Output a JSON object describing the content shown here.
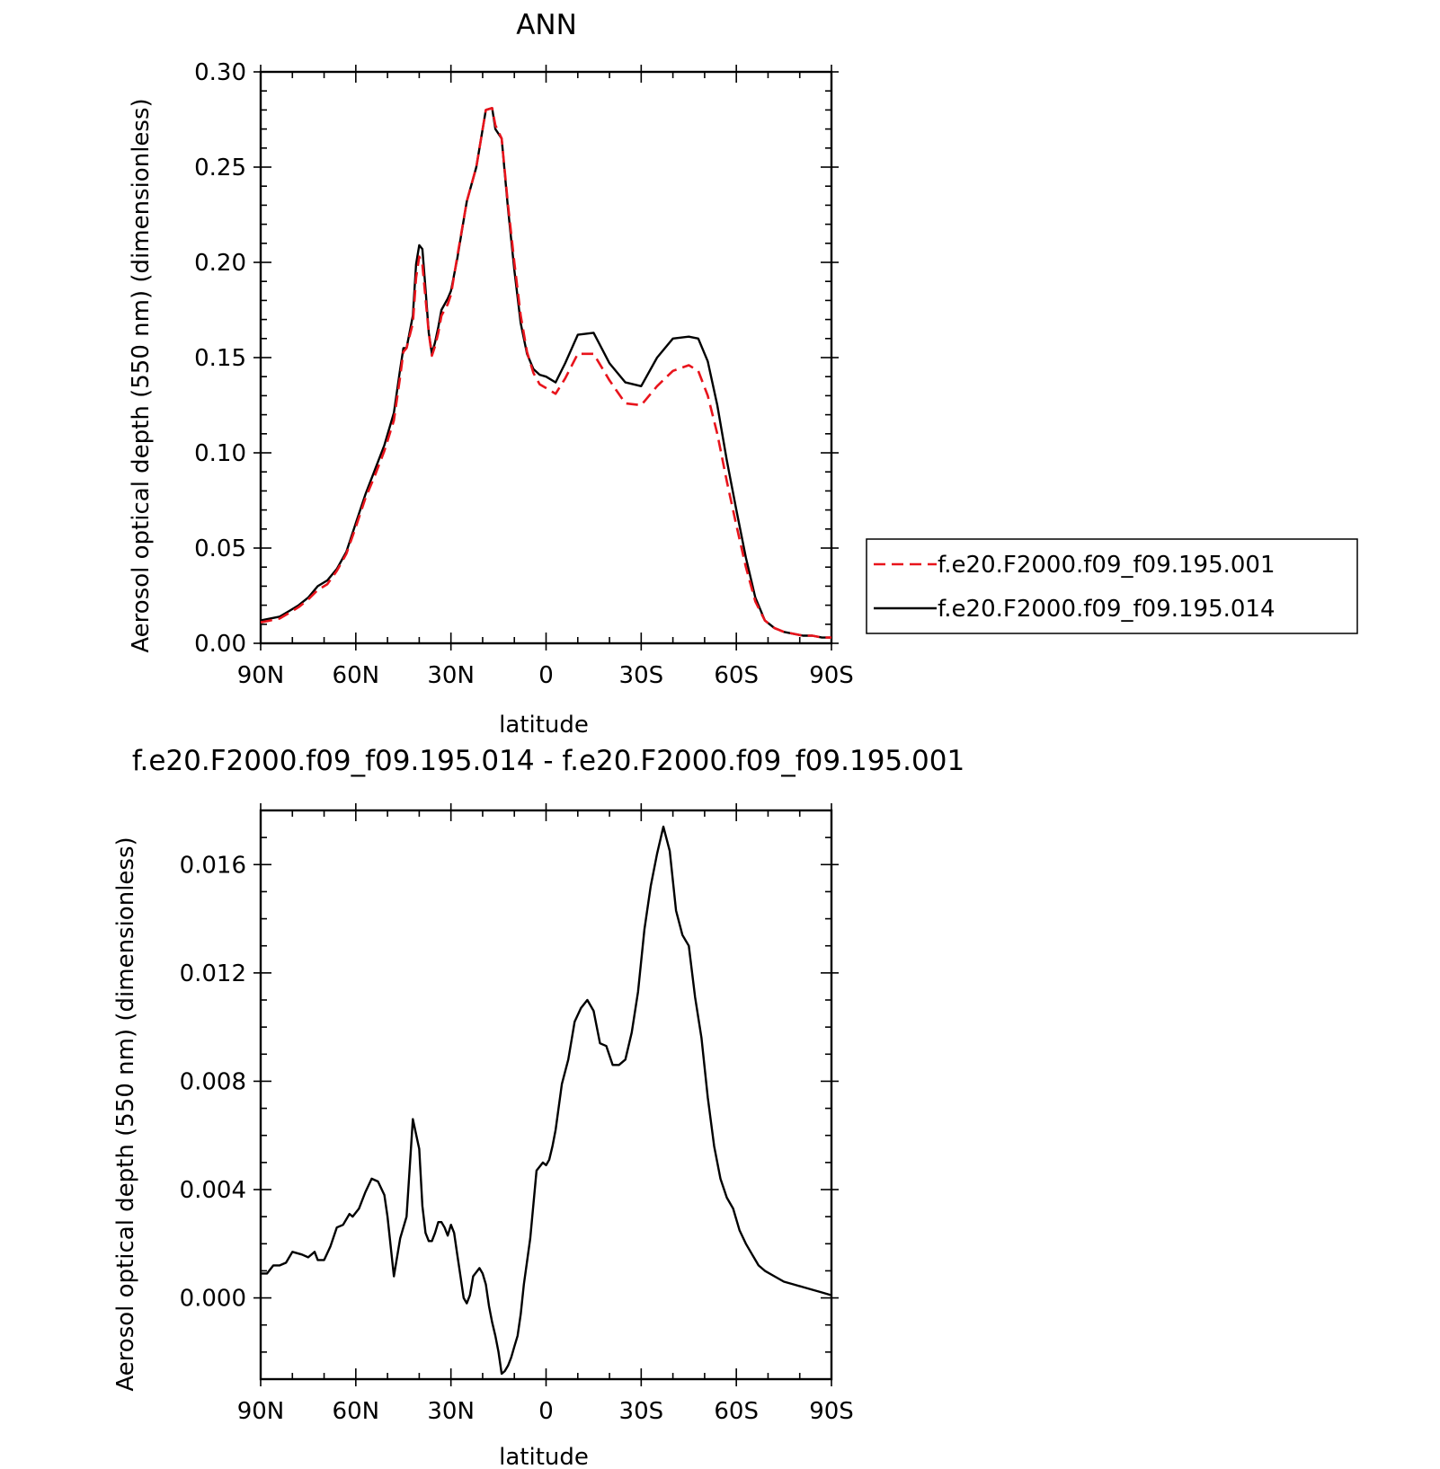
{
  "chart_data": [
    {
      "type": "line",
      "title": "ANN",
      "xlabel": "latitude",
      "ylabel": "Aerosol optical depth (550 nm) (dimensionless)",
      "xlim": [
        90,
        -90
      ],
      "ylim": [
        0,
        0.3
      ],
      "x_ticks": [
        {
          "value": 90,
          "label": "90N"
        },
        {
          "value": 60,
          "label": "60N"
        },
        {
          "value": 30,
          "label": "30N"
        },
        {
          "value": 0,
          "label": "0"
        },
        {
          "value": -30,
          "label": "30S"
        },
        {
          "value": -60,
          "label": "60S"
        },
        {
          "value": -90,
          "label": "90S"
        }
      ],
      "y_ticks": [
        {
          "value": 0.0,
          "label": "0.00"
        },
        {
          "value": 0.05,
          "label": "0.05"
        },
        {
          "value": 0.1,
          "label": "0.10"
        },
        {
          "value": 0.15,
          "label": "0.15"
        },
        {
          "value": 0.2,
          "label": "0.20"
        },
        {
          "value": 0.25,
          "label": "0.25"
        },
        {
          "value": 0.3,
          "label": "0.30"
        }
      ],
      "legend_position": "right",
      "series": [
        {
          "name": "f.e20.F2000.f09_f09.195.001",
          "color": "#e8141c",
          "style": "dashed",
          "x": [
            90,
            87,
            84,
            81,
            78,
            75,
            72,
            69,
            66,
            63,
            60,
            57,
            54,
            51,
            48,
            46,
            45,
            44,
            42,
            41,
            40,
            39,
            38,
            37,
            36,
            35,
            34,
            33,
            31,
            30,
            28,
            25,
            22,
            19,
            17,
            16,
            14,
            12,
            10,
            8,
            6,
            4,
            2,
            0,
            -3,
            -6,
            -10,
            -15,
            -20,
            -25,
            -30,
            -35,
            -40,
            -45,
            -48,
            -51,
            -54,
            -57,
            -60,
            -63,
            -66,
            -69,
            -72,
            -75,
            -78,
            -81,
            -84,
            -87,
            -90
          ],
          "y": [
            0.011,
            0.012,
            0.013,
            0.016,
            0.019,
            0.023,
            0.028,
            0.031,
            0.038,
            0.047,
            0.061,
            0.076,
            0.088,
            0.101,
            0.117,
            0.14,
            0.153,
            0.155,
            0.168,
            0.192,
            0.203,
            0.199,
            0.181,
            0.163,
            0.151,
            0.156,
            0.163,
            0.172,
            0.178,
            0.183,
            0.203,
            0.232,
            0.25,
            0.28,
            0.281,
            0.272,
            0.265,
            0.23,
            0.2,
            0.172,
            0.153,
            0.142,
            0.136,
            0.134,
            0.131,
            0.139,
            0.152,
            0.152,
            0.138,
            0.126,
            0.125,
            0.135,
            0.143,
            0.146,
            0.143,
            0.13,
            0.11,
            0.085,
            0.062,
            0.04,
            0.022,
            0.012,
            0.008,
            0.006,
            0.005,
            0.004,
            0.004,
            0.003,
            0.003
          ]
        },
        {
          "name": "f.e20.F2000.f09_f09.195.014",
          "color": "#000000",
          "style": "solid",
          "x": [
            90,
            87,
            84,
            81,
            78,
            75,
            72,
            69,
            66,
            63,
            60,
            57,
            54,
            51,
            48,
            46,
            45,
            44,
            42,
            41,
            40,
            39,
            38,
            37,
            36,
            35,
            34,
            33,
            31,
            30,
            28,
            25,
            22,
            19,
            17,
            16,
            14,
            12,
            10,
            8,
            6,
            4,
            2,
            0,
            -3,
            -6,
            -10,
            -15,
            -20,
            -25,
            -30,
            -35,
            -40,
            -45,
            -48,
            -51,
            -54,
            -57,
            -60,
            -63,
            -66,
            -69,
            -72,
            -75,
            -78,
            -81,
            -84,
            -87,
            -90
          ],
          "y": [
            0.012,
            0.013,
            0.014,
            0.017,
            0.02,
            0.024,
            0.03,
            0.033,
            0.039,
            0.048,
            0.063,
            0.078,
            0.091,
            0.104,
            0.121,
            0.144,
            0.155,
            0.155,
            0.172,
            0.199,
            0.209,
            0.207,
            0.186,
            0.163,
            0.152,
            0.158,
            0.166,
            0.175,
            0.181,
            0.185,
            0.202,
            0.232,
            0.25,
            0.28,
            0.281,
            0.27,
            0.265,
            0.228,
            0.196,
            0.168,
            0.152,
            0.144,
            0.141,
            0.14,
            0.137,
            0.147,
            0.162,
            0.163,
            0.147,
            0.137,
            0.135,
            0.15,
            0.16,
            0.161,
            0.16,
            0.148,
            0.125,
            0.096,
            0.07,
            0.045,
            0.024,
            0.012,
            0.008,
            0.006,
            0.005,
            0.004,
            0.004,
            0.003,
            0.003
          ]
        }
      ]
    },
    {
      "type": "line",
      "title": "f.e20.F2000.f09_f09.195.014 - f.e20.F2000.f09_f09.195.001",
      "xlabel": "latitude",
      "ylabel": "Aerosol optical depth (550 nm) (dimensionless)",
      "xlim": [
        90,
        -90
      ],
      "ylim": [
        -0.003,
        0.018
      ],
      "x_ticks": [
        {
          "value": 90,
          "label": "90N"
        },
        {
          "value": 60,
          "label": "60N"
        },
        {
          "value": 30,
          "label": "30N"
        },
        {
          "value": 0,
          "label": "0"
        },
        {
          "value": -30,
          "label": "30S"
        },
        {
          "value": -60,
          "label": "60S"
        },
        {
          "value": -90,
          "label": "90S"
        }
      ],
      "y_ticks": [
        {
          "value": 0.0,
          "label": "0.000"
        },
        {
          "value": 0.004,
          "label": "0.004"
        },
        {
          "value": 0.008,
          "label": "0.008"
        },
        {
          "value": 0.012,
          "label": "0.012"
        },
        {
          "value": 0.016,
          "label": "0.016"
        }
      ],
      "series": [
        {
          "color": "#000000",
          "style": "solid",
          "x": [
            90,
            88,
            86,
            84,
            82,
            80,
            77,
            75,
            73,
            72,
            70,
            68,
            66,
            64,
            62,
            61,
            59,
            57,
            55,
            53,
            51,
            50,
            48,
            46,
            44,
            42,
            40,
            39,
            38,
            37,
            36,
            35,
            34,
            33,
            32,
            31,
            30,
            29,
            28,
            27,
            26,
            25,
            24,
            23,
            21,
            20,
            19,
            18,
            17,
            16,
            15,
            14,
            13,
            12,
            11,
            10,
            9,
            8,
            7,
            5,
            3,
            1,
            0,
            -1,
            -2,
            -3,
            -5,
            -7,
            -9,
            -11,
            -13,
            -15,
            -17,
            -19,
            -21,
            -23,
            -25,
            -27,
            -29,
            -31,
            -33,
            -35,
            -37,
            -39,
            -41,
            -43,
            -45,
            -47,
            -49,
            -51,
            -53,
            -55,
            -57,
            -59,
            -61,
            -63,
            -65,
            -67,
            -69,
            -72,
            -75,
            -78,
            -81,
            -84,
            -87,
            -90
          ],
          "y": [
            0.0009,
            0.0009,
            0.0012,
            0.0012,
            0.0013,
            0.0017,
            0.0016,
            0.0015,
            0.0017,
            0.0014,
            0.0014,
            0.0019,
            0.0026,
            0.0027,
            0.0031,
            0.003,
            0.0033,
            0.0039,
            0.0044,
            0.0043,
            0.0038,
            0.003,
            0.0008,
            0.0022,
            0.003,
            0.0066,
            0.0055,
            0.0034,
            0.0024,
            0.0021,
            0.0021,
            0.0024,
            0.0028,
            0.0028,
            0.0026,
            0.0023,
            0.0027,
            0.0024,
            0.0016,
            0.0008,
            0.0,
            -0.0002,
            0.0001,
            0.0008,
            0.0011,
            0.0009,
            0.0005,
            -0.0003,
            -0.0009,
            -0.0014,
            -0.002,
            -0.0028,
            -0.0027,
            -0.0025,
            -0.0022,
            -0.0018,
            -0.0014,
            -0.0006,
            0.0005,
            0.0022,
            0.0047,
            0.005,
            0.0049,
            0.0051,
            0.0056,
            0.0062,
            0.0079,
            0.0088,
            0.0102,
            0.0107,
            0.011,
            0.0106,
            0.0094,
            0.0093,
            0.0086,
            0.0086,
            0.0088,
            0.0098,
            0.0113,
            0.0136,
            0.0152,
            0.0164,
            0.0174,
            0.0165,
            0.0143,
            0.0134,
            0.013,
            0.0111,
            0.0096,
            0.0074,
            0.0056,
            0.0044,
            0.0037,
            0.0033,
            0.0025,
            0.002,
            0.0016,
            0.0012,
            0.001,
            0.0008,
            0.0006,
            0.0005,
            0.0004,
            0.0003,
            0.0002,
            0.0001
          ]
        }
      ]
    }
  ]
}
